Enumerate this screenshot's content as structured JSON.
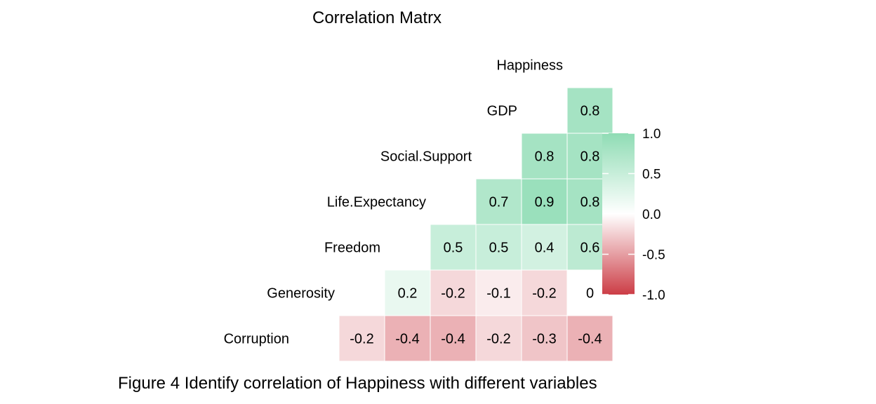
{
  "title": "Correlation Matrx",
  "caption": "Figure 4 Identify correlation of Happiness with different variables",
  "chart_data": {
    "type": "heatmap",
    "title": "Correlation Matrx",
    "variables": [
      "Corruption",
      "Generosity",
      "Freedom",
      "Life.Expectancy",
      "Social.Support",
      "GDP",
      "Happiness"
    ],
    "cells": [
      {
        "row": "GDP",
        "col": "Happiness",
        "value": 0.8,
        "label": "0.8"
      },
      {
        "row": "Social.Support",
        "col": "GDP",
        "value": 0.8,
        "label": "0.8"
      },
      {
        "row": "Social.Support",
        "col": "Happiness",
        "value": 0.8,
        "label": "0.8"
      },
      {
        "row": "Life.Expectancy",
        "col": "Social.Support",
        "value": 0.7,
        "label": "0.7"
      },
      {
        "row": "Life.Expectancy",
        "col": "GDP",
        "value": 0.9,
        "label": "0.9"
      },
      {
        "row": "Life.Expectancy",
        "col": "Happiness",
        "value": 0.8,
        "label": "0.8"
      },
      {
        "row": "Freedom",
        "col": "Life.Expectancy",
        "value": 0.5,
        "label": "0.5"
      },
      {
        "row": "Freedom",
        "col": "Social.Support",
        "value": 0.5,
        "label": "0.5"
      },
      {
        "row": "Freedom",
        "col": "GDP",
        "value": 0.4,
        "label": "0.4"
      },
      {
        "row": "Freedom",
        "col": "Happiness",
        "value": 0.6,
        "label": "0.6"
      },
      {
        "row": "Generosity",
        "col": "Freedom",
        "value": 0.2,
        "label": "0.2"
      },
      {
        "row": "Generosity",
        "col": "Life.Expectancy",
        "value": -0.2,
        "label": "-0.2"
      },
      {
        "row": "Generosity",
        "col": "Social.Support",
        "value": -0.1,
        "label": "-0.1"
      },
      {
        "row": "Generosity",
        "col": "GDP",
        "value": -0.2,
        "label": "-0.2"
      },
      {
        "row": "Generosity",
        "col": "Happiness",
        "value": 0.0,
        "label": "0"
      },
      {
        "row": "Corruption",
        "col": "Generosity",
        "value": -0.2,
        "label": "-0.2"
      },
      {
        "row": "Corruption",
        "col": "Freedom",
        "value": -0.4,
        "label": "-0.4"
      },
      {
        "row": "Corruption",
        "col": "Life.Expectancy",
        "value": -0.4,
        "label": "-0.4"
      },
      {
        "row": "Corruption",
        "col": "Social.Support",
        "value": -0.2,
        "label": "-0.2"
      },
      {
        "row": "Corruption",
        "col": "GDP",
        "value": -0.3,
        "label": "-0.3"
      },
      {
        "row": "Corruption",
        "col": "Happiness",
        "value": -0.4,
        "label": "-0.4"
      }
    ],
    "colorscale": {
      "low": "#cc3d46",
      "mid": "#ffffff",
      "high": "#8fdcb4",
      "range": [
        -1,
        1
      ]
    },
    "legend": {
      "placement": "right",
      "ticks": [
        "1.0",
        "0.5",
        "0.0",
        "-0.5",
        "-1.0"
      ]
    }
  }
}
